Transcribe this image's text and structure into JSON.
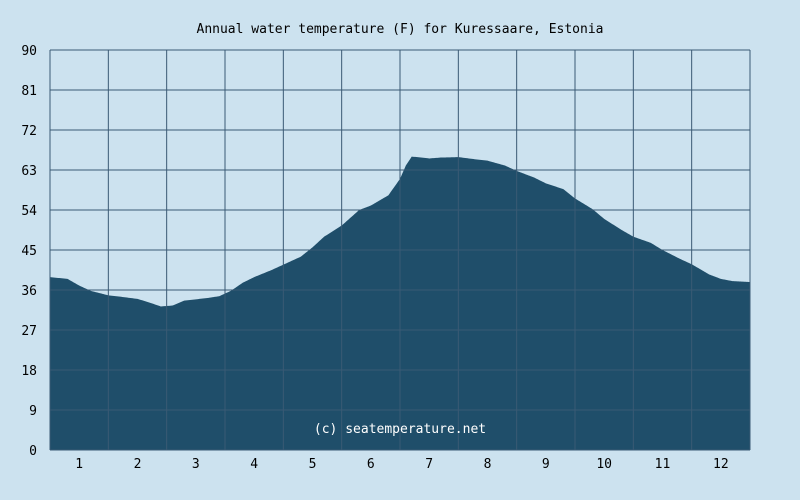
{
  "colors": {
    "background": "#cce2ef",
    "plot_background": "#cce2ef",
    "area_fill": "#1f4e6a",
    "grid": "#3a5a74",
    "text": "#000000",
    "watermark_text": "#ffffff"
  },
  "chart_data": {
    "type": "area",
    "title": "Annual water temperature (F) for Kuressaare, Estonia",
    "watermark": "(c) seatemperature.net",
    "xlabel": "",
    "ylabel": "",
    "x_tick_labels": [
      "1",
      "2",
      "3",
      "4",
      "5",
      "6",
      "7",
      "8",
      "9",
      "10",
      "11",
      "12"
    ],
    "y_tick_labels": [
      "0",
      "9",
      "18",
      "27",
      "36",
      "45",
      "54",
      "63",
      "72",
      "81",
      "90"
    ],
    "xlim": [
      0.5,
      12.5
    ],
    "ylim": [
      0,
      90
    ],
    "grid": true,
    "legend": "none",
    "x": [
      0.5,
      0.8,
      1.0,
      1.2,
      1.5,
      1.7,
      2.0,
      2.2,
      2.4,
      2.6,
      2.8,
      3.0,
      3.2,
      3.4,
      3.6,
      3.8,
      4.0,
      4.3,
      4.6,
      4.8,
      5.0,
      5.2,
      5.5,
      5.8,
      6.0,
      6.3,
      6.5,
      6.6,
      6.7,
      6.8,
      7.0,
      7.2,
      7.5,
      7.8,
      8.0,
      8.3,
      8.5,
      8.8,
      9.0,
      9.3,
      9.5,
      9.8,
      10.0,
      10.3,
      10.5,
      10.8,
      11.0,
      11.3,
      11.5,
      11.8,
      12.0,
      12.2,
      12.5
    ],
    "y": [
      38.9,
      38.5,
      37.0,
      35.8,
      34.8,
      34.5,
      34.0,
      33.2,
      32.3,
      32.5,
      33.6,
      33.9,
      34.2,
      34.6,
      35.8,
      37.6,
      38.9,
      40.5,
      42.3,
      43.5,
      45.6,
      48.0,
      50.5,
      54.0,
      55.0,
      57.3,
      61.0,
      64.0,
      66.0,
      65.9,
      65.6,
      65.8,
      65.9,
      65.4,
      65.1,
      64.0,
      62.8,
      61.3,
      60.0,
      58.7,
      56.6,
      54.2,
      52.0,
      49.5,
      48.0,
      46.6,
      45.0,
      43.0,
      41.8,
      39.5,
      38.5,
      38.0,
      37.8
    ]
  }
}
